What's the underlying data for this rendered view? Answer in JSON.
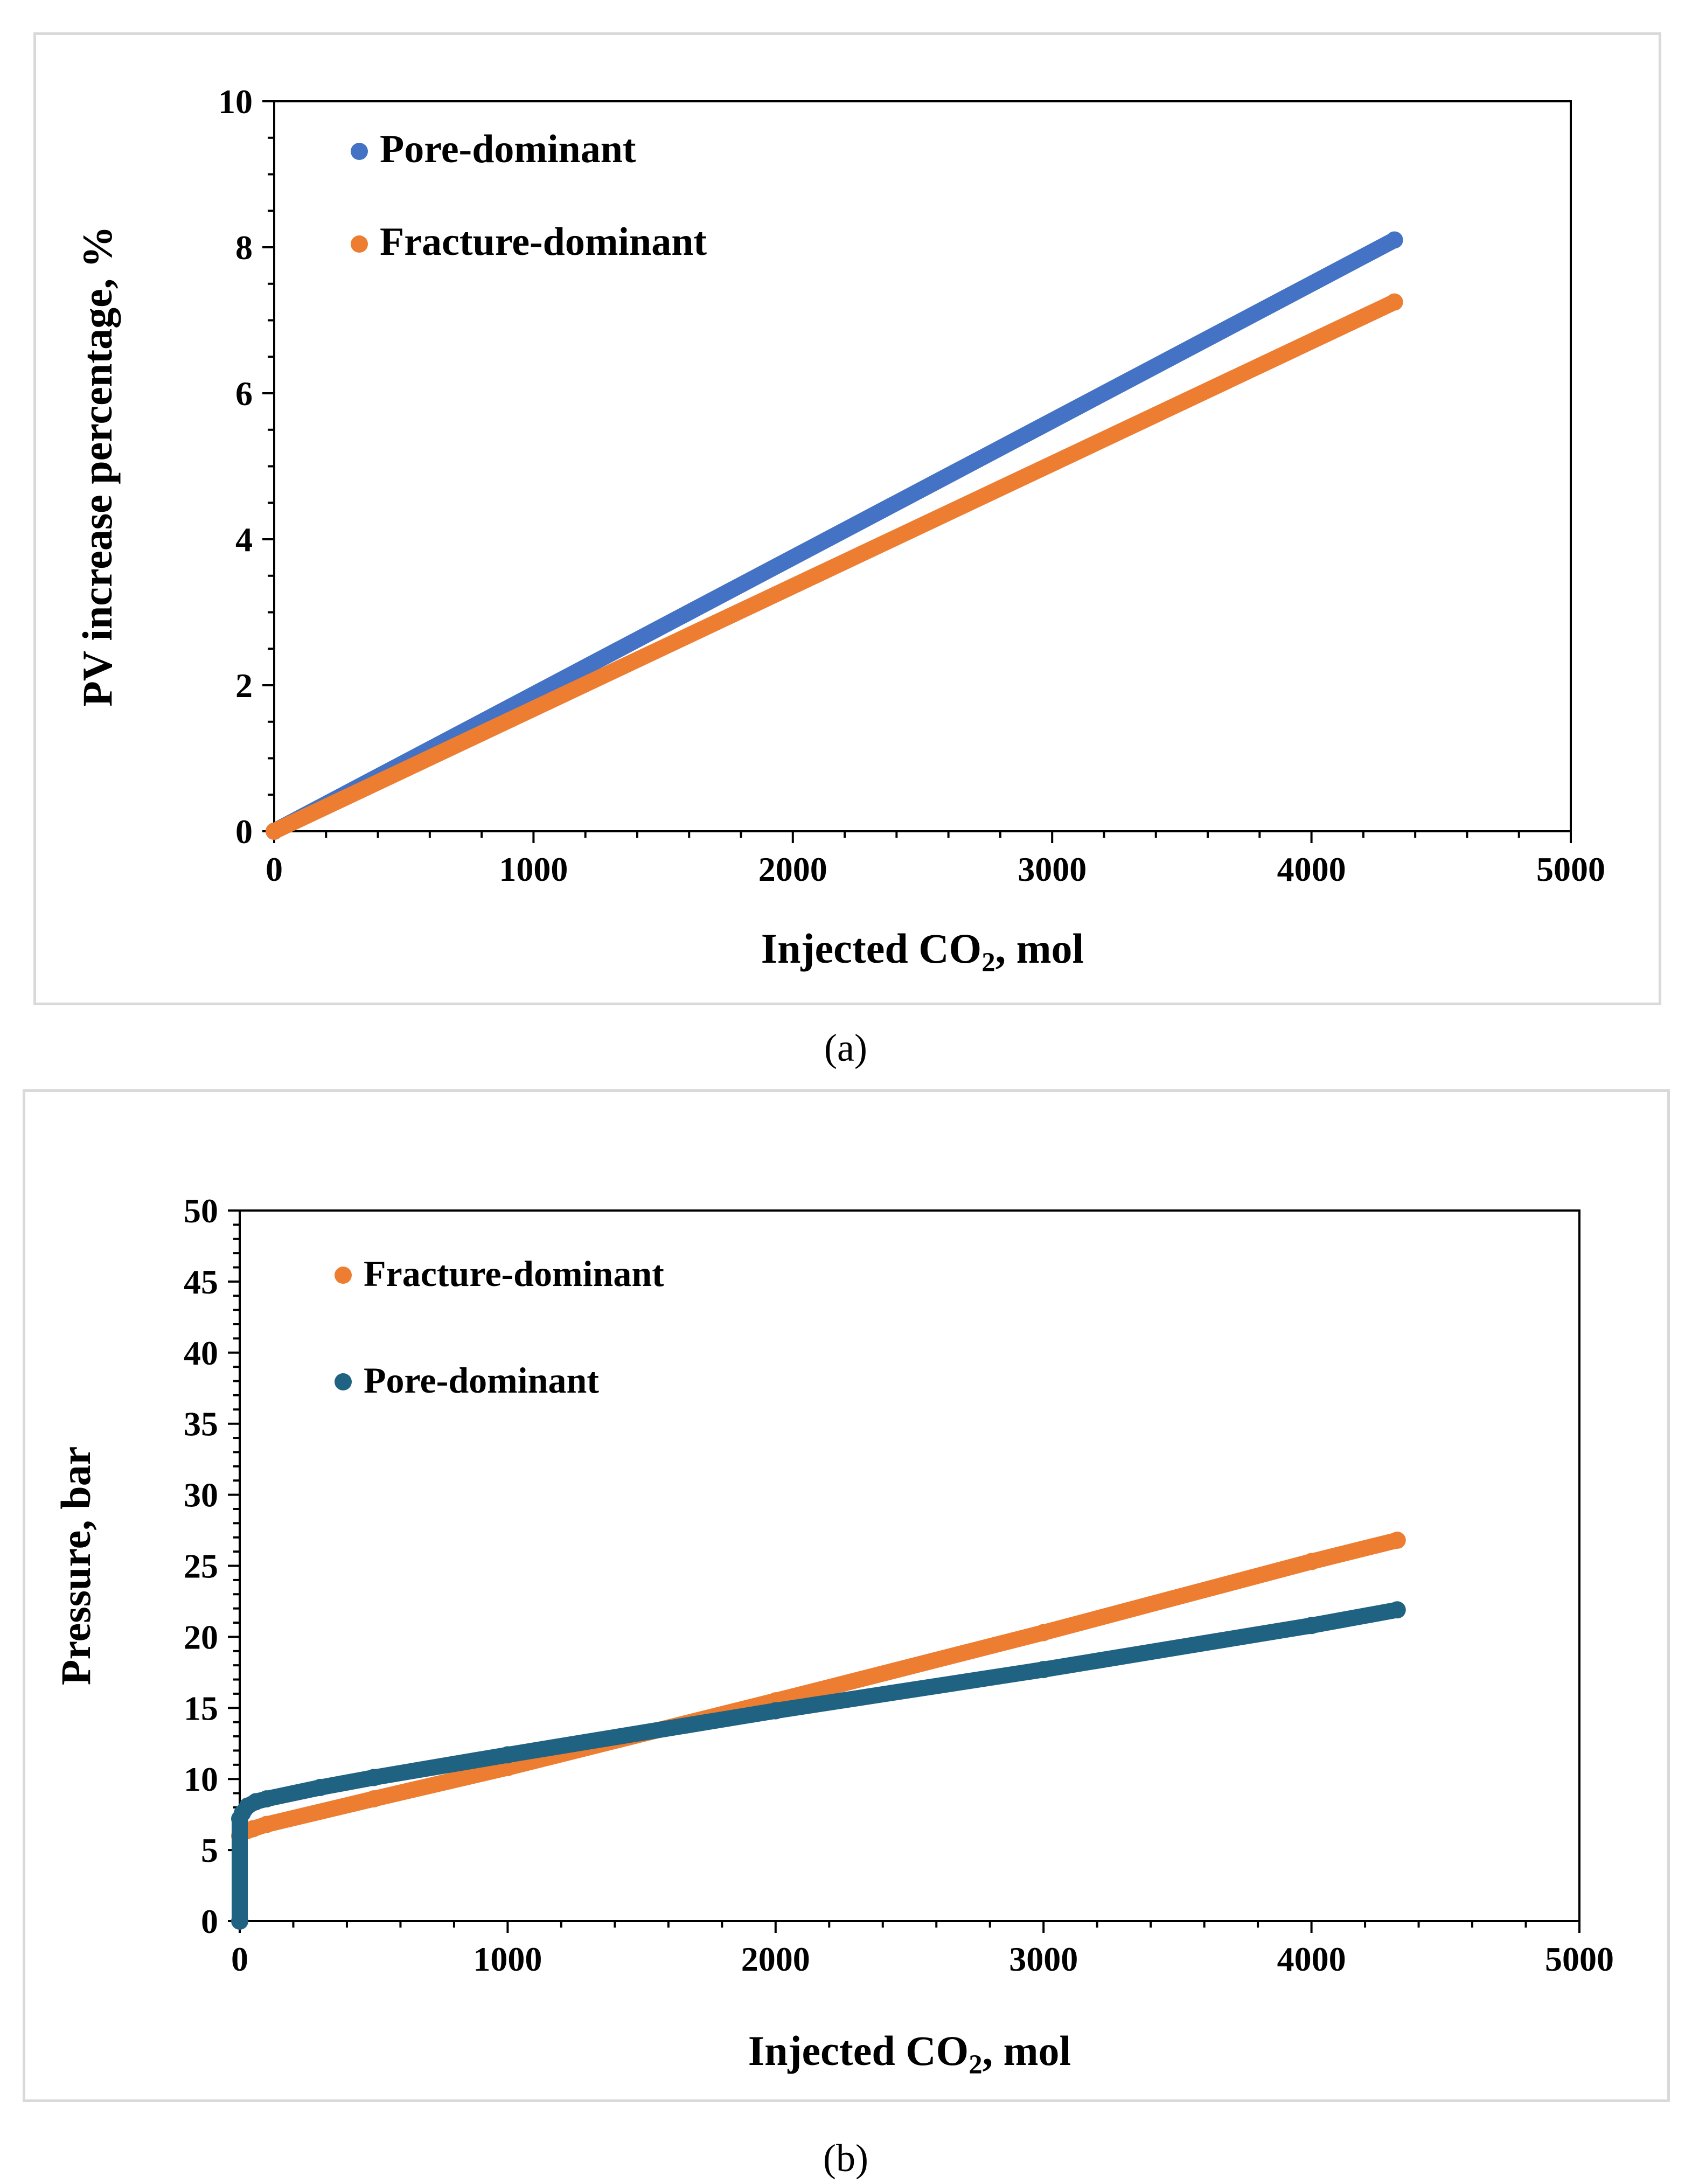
{
  "chart_data": [
    {
      "id": "a",
      "type": "scatter",
      "caption": "(a)",
      "xlabel_main": "Injected CO",
      "xlabel_sub": "2",
      "xlabel_tail": ", mol",
      "ylabel": "PV increase percentage, %",
      "xlim": [
        0,
        5000
      ],
      "ylim": [
        0,
        10
      ],
      "xticks": [
        0,
        1000,
        2000,
        3000,
        4000,
        5000
      ],
      "yticks": [
        0,
        2,
        4,
        6,
        8,
        10
      ],
      "xtick_labels": [
        "0",
        "1000",
        "2000",
        "3000",
        "4000",
        "5000"
      ],
      "ytick_labels": [
        "0",
        "2",
        "4",
        "6",
        "8",
        "10"
      ],
      "legend_position": "top-left",
      "series": [
        {
          "name": "Pore-dominant",
          "color": "#4472C4",
          "x": [
            0,
            4320
          ],
          "y": [
            0,
            8.1
          ]
        },
        {
          "name": "Fracture-dominant",
          "color": "#ED7D31",
          "x": [
            0,
            4320
          ],
          "y": [
            0,
            7.25
          ]
        }
      ]
    },
    {
      "id": "b",
      "type": "scatter",
      "caption": "(b)",
      "xlabel_main": "Injected CO",
      "xlabel_sub": "2",
      "xlabel_tail": ", mol",
      "ylabel": "Pressure, bar",
      "xlim": [
        0,
        5000
      ],
      "ylim": [
        0,
        50
      ],
      "xticks": [
        0,
        1000,
        2000,
        3000,
        4000,
        5000
      ],
      "yticks": [
        0,
        5,
        10,
        15,
        20,
        25,
        30,
        35,
        40,
        45,
        50
      ],
      "xtick_labels": [
        "0",
        "1000",
        "2000",
        "3000",
        "4000",
        "5000"
      ],
      "ytick_labels": [
        "0",
        "5",
        "10",
        "15",
        "20",
        "25",
        "30",
        "35",
        "40",
        "45",
        "50"
      ],
      "legend_position": "top-left",
      "series": [
        {
          "name": "Fracture-dominant",
          "color": "#ED7D31",
          "x": [
            0,
            10,
            50,
            100,
            500,
            1000,
            2000,
            3000,
            4000,
            4320
          ],
          "y": [
            6.0,
            6.2,
            6.5,
            6.8,
            8.6,
            10.8,
            15.5,
            20.3,
            25.3,
            26.8
          ]
        },
        {
          "name": "Pore-dominant",
          "color": "#1F6282",
          "x": [
            0,
            0,
            10,
            30,
            60,
            100,
            300,
            500,
            1000,
            2000,
            3000,
            4000,
            4320
          ],
          "y": [
            0,
            7.2,
            7.6,
            8.1,
            8.4,
            8.6,
            9.4,
            10.1,
            11.7,
            14.8,
            17.7,
            20.8,
            21.9
          ]
        }
      ]
    }
  ]
}
